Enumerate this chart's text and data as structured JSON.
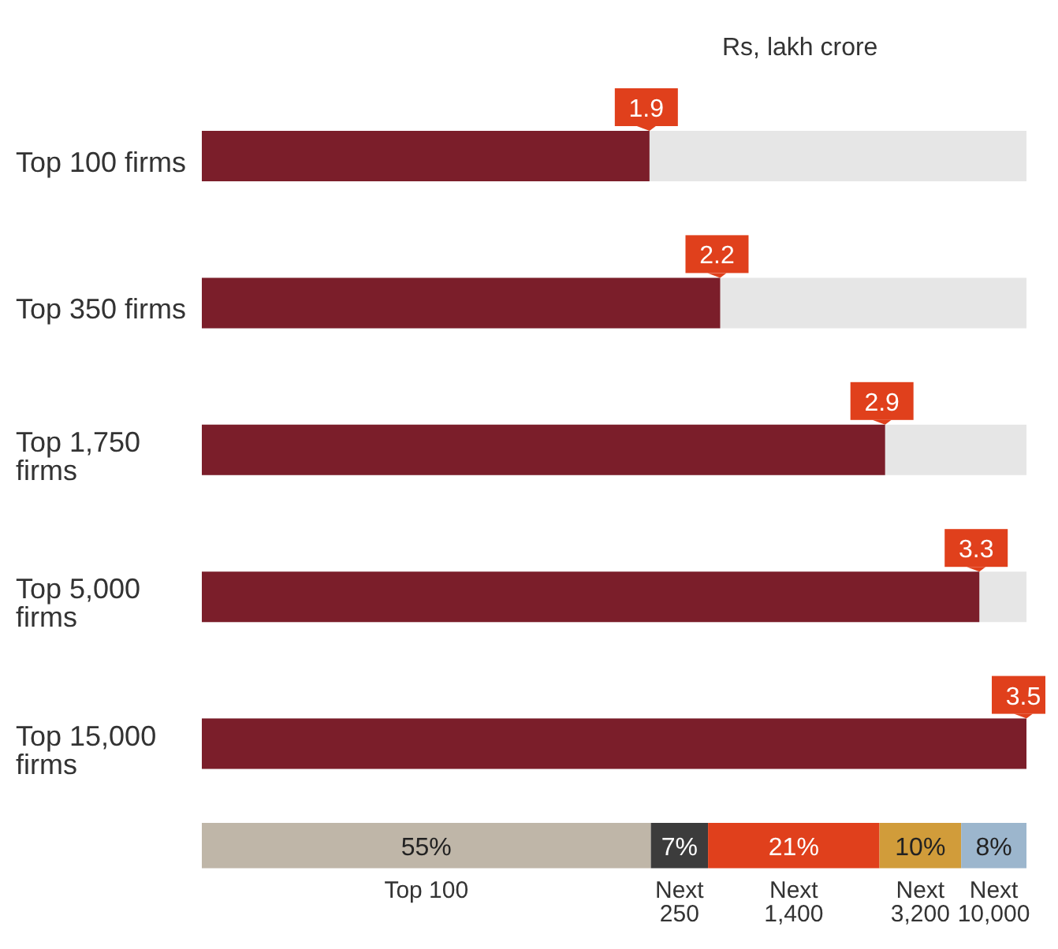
{
  "chart_data": [
    {
      "type": "bar",
      "orientation": "horizontal",
      "stacked": true,
      "categories": [
        "Top 100 firms",
        "Top 350 firms",
        "Top 1,750 firms",
        "Top 5,000 firms",
        "Top 15,000 firms"
      ],
      "series": [
        {
          "color": "#7b1e2a",
          "values": [
            1.9,
            2.2,
            2.9,
            3.3,
            3.5
          ],
          "value_labels": [
            "1.9",
            "2.2",
            "2.9",
            "3.3",
            "3.5"
          ]
        }
      ],
      "tick_labels": "y",
      "annotations": [
        "Rs, lakh crore"
      ]
    },
    {
      "type": "bar",
      "orientation": "horizontal",
      "stacked": true,
      "categories": [
        null
      ],
      "series": [
        {
          "name": "Top 100",
          "color": "#bfb6a8",
          "values": [
            55
          ],
          "value_labels": [
            "55%"
          ]
        },
        {
          "name": "Next 250",
          "color": "#3c3c3c",
          "values": [
            7
          ],
          "value_labels": [
            "7%"
          ]
        },
        {
          "name": "Next 1,400",
          "color": "#e0401c",
          "values": [
            21
          ],
          "value_labels": [
            "21%"
          ]
        },
        {
          "name": "Next 3,200",
          "color": "#d19c3a",
          "values": [
            10
          ],
          "value_labels": [
            "10%"
          ]
        },
        {
          "name": "Next 10,000",
          "color": "#9cb6cd",
          "values": [
            8
          ],
          "value_labels": [
            "8%"
          ]
        }
      ],
      "tick_labels": false
    }
  ]
}
